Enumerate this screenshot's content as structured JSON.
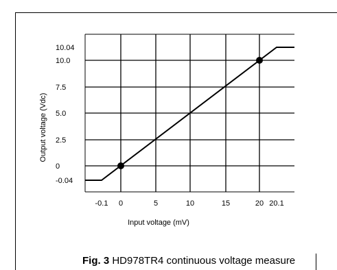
{
  "chart_data": {
    "type": "line",
    "xlabel": "Input voltage (mV)",
    "ylabel": "Output voltage (Vdc)",
    "x_ticks": [
      {
        "label": "-0.1",
        "value": -0.1
      },
      {
        "label": "0",
        "value": 0
      },
      {
        "label": "5",
        "value": 5
      },
      {
        "label": "10",
        "value": 10
      },
      {
        "label": "15",
        "value": 15
      },
      {
        "label": "20",
        "value": 20
      },
      {
        "label": "20.1",
        "value": 20.1
      }
    ],
    "y_ticks": [
      {
        "label": "-0.04",
        "value": -0.04
      },
      {
        "label": "0",
        "value": 0
      },
      {
        "label": "2.5",
        "value": 2.5
      },
      {
        "label": "5.0",
        "value": 5.0
      },
      {
        "label": "7.5",
        "value": 7.5
      },
      {
        "label": "10.0",
        "value": 10.0
      },
      {
        "label": "10.04",
        "value": 10.04
      }
    ],
    "series": [
      {
        "points": [
          {
            "x": -0.5,
            "y": -0.04
          },
          {
            "x": -0.1,
            "y": -0.04
          },
          {
            "x": 20.1,
            "y": 10.04
          },
          {
            "x": 21.5,
            "y": 10.04
          }
        ]
      }
    ],
    "markers": [
      {
        "x": 0,
        "y": 0
      },
      {
        "x": 20,
        "y": 10.0
      }
    ],
    "grid": true
  },
  "caption": {
    "label": "Fig. 3",
    "text": " HD978TR4 continuous voltage measure"
  }
}
